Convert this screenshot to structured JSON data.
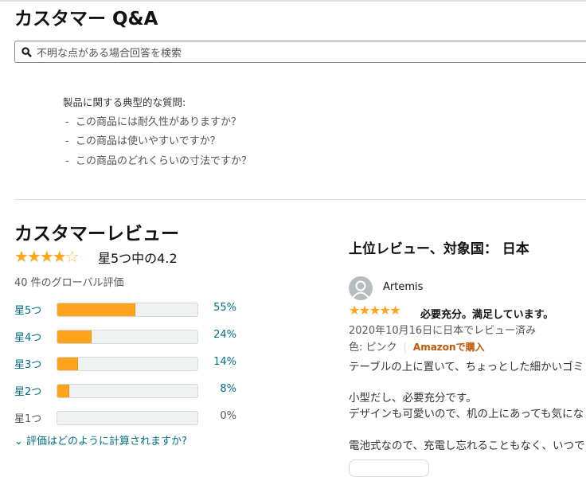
{
  "qa": {
    "title": "カスタマー Q&A",
    "search_placeholder": "不明な点がある場合回答を検索",
    "typical_heading": "製品に関する典型的な質問:",
    "questions": [
      "この商品には耐久性がありますか？",
      "この商品は使いやすいですか？",
      "この商品のどれくらいの寸法ですか？"
    ]
  },
  "reviews": {
    "title": "カスタマーレビュー",
    "rating": 4.2,
    "rating_text": "星5つ中の4.2",
    "global_count": "40 件のグローバル評価",
    "histogram": [
      {
        "label": "星5つ",
        "percent": 55,
        "pct_text": "55%"
      },
      {
        "label": "星4つ",
        "percent": 24,
        "pct_text": "24%"
      },
      {
        "label": "星3つ",
        "percent": 14,
        "pct_text": "14%"
      },
      {
        "label": "星2つ",
        "percent": 8,
        "pct_text": "8%"
      },
      {
        "label": "星1つ",
        "percent": 0,
        "pct_text": "0%"
      }
    ],
    "how_calculated": "評価はどのように計算されますか?"
  },
  "top": {
    "heading": "上位レビュー、対象国： 日本",
    "review": {
      "author": "Artemis",
      "stars": 5,
      "title": "必要充分。満足しています。",
      "date": "2020年10月16日に日本でレビュー済み",
      "color": "色: ピンク",
      "verified": "Amazonで購入",
      "lines": [
        "テーブルの上に置いて、ちょっとした細かいゴミ",
        "小型だし、必要充分です。",
        "デザインも可愛いので、机の上にあっても気にな",
        "電池式なので、充電し忘れることもなく、いつで"
      ]
    }
  },
  "colors": {
    "star": "#ffa41c",
    "link": "#007185",
    "verified": "#c45500"
  }
}
